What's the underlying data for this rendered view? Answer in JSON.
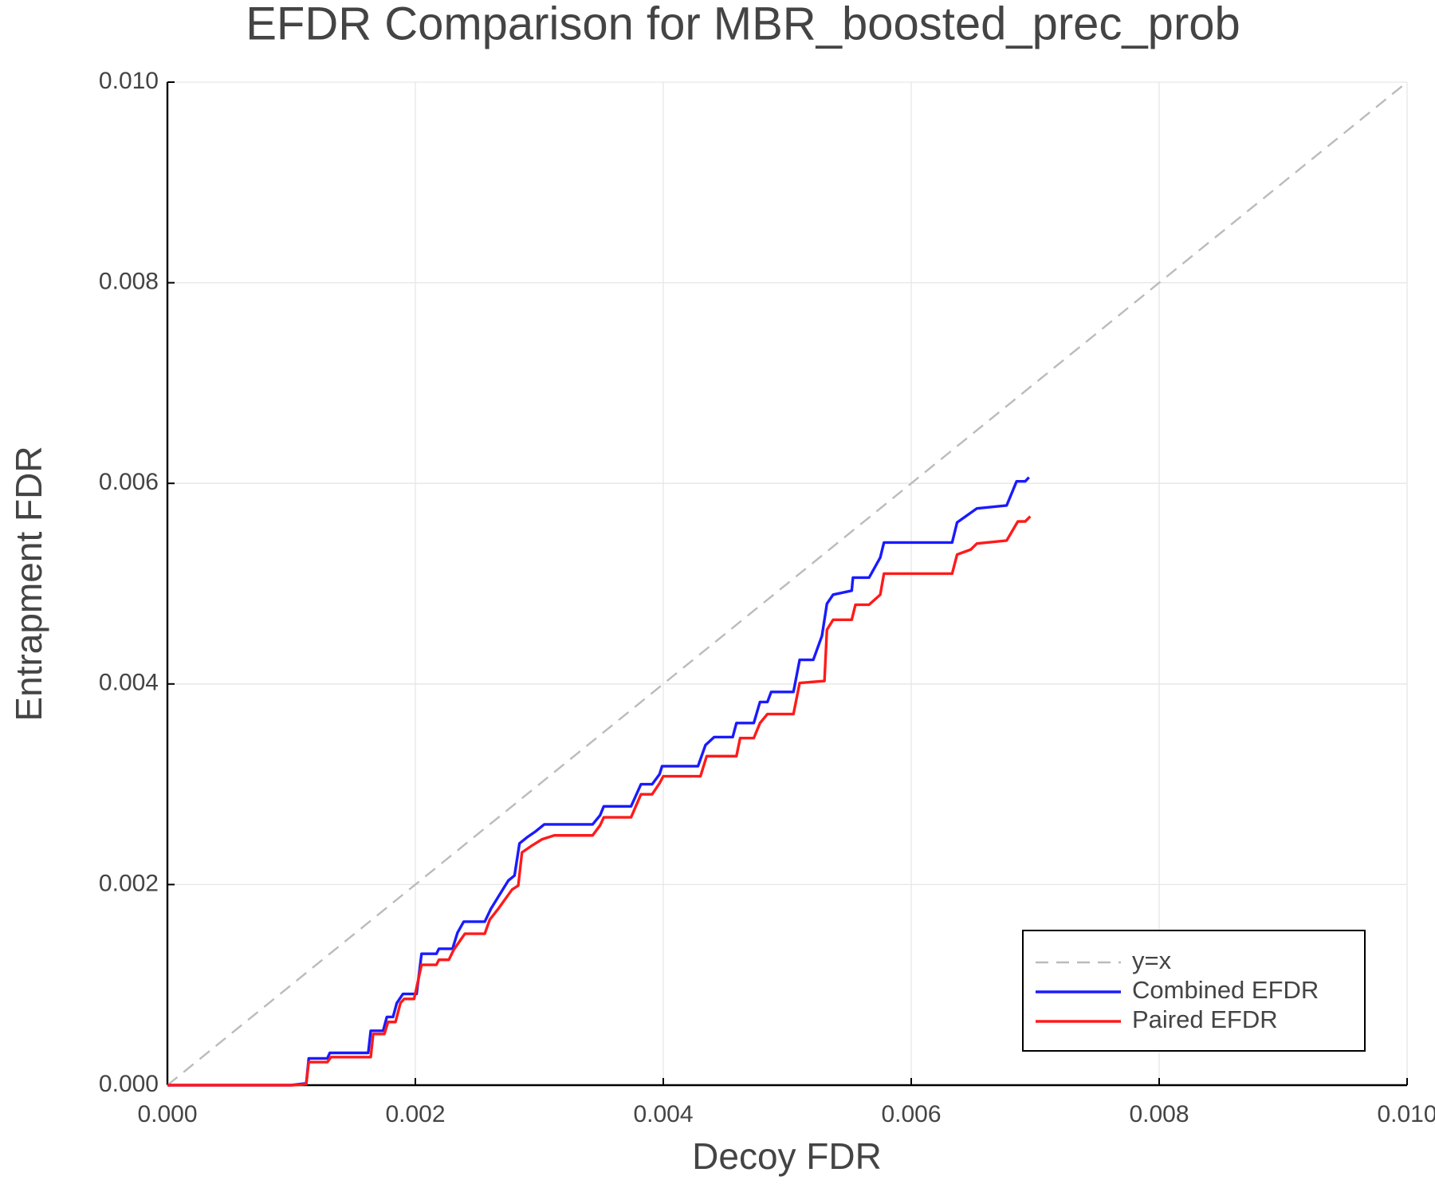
{
  "chart_data": {
    "type": "line",
    "title": "EFDR Comparison for MBR_boosted_prec_prob",
    "xlabel": "Decoy FDR",
    "ylabel": "Entrapment FDR",
    "xlim": [
      0,
      0.01
    ],
    "ylim": [
      0,
      0.01
    ],
    "xticks": [
      {
        "value": 0,
        "label": "0.000"
      },
      {
        "value": 0.002,
        "label": "0.002"
      },
      {
        "value": 0.004,
        "label": "0.004"
      },
      {
        "value": 0.006,
        "label": "0.006"
      },
      {
        "value": 0.008,
        "label": "0.008"
      },
      {
        "value": 0.01,
        "label": "0.010"
      }
    ],
    "yticks": [
      {
        "value": 0,
        "label": "0.000"
      },
      {
        "value": 0.002,
        "label": "0.002"
      },
      {
        "value": 0.004,
        "label": "0.004"
      },
      {
        "value": 0.006,
        "label": "0.006"
      },
      {
        "value": 0.008,
        "label": "0.008"
      },
      {
        "value": 0.01,
        "label": "0.010"
      }
    ],
    "grid": true,
    "legend": "lower right",
    "series": [
      {
        "name": "y=x",
        "color": "#bbbbbb",
        "dashed": true,
        "x": [
          0,
          0.01
        ],
        "values": [
          0,
          0.01
        ]
      },
      {
        "name": "Combined EFDR",
        "color": "#1a1aff",
        "x": [
          0,
          0.000997,
          0.00112,
          0.00114,
          0.00129,
          0.00131,
          0.00162,
          0.00164,
          0.00174,
          0.00177,
          0.00182,
          0.00185,
          0.0019,
          0.00201,
          0.00205,
          0.00217,
          0.00219,
          0.0023,
          0.00234,
          0.00239,
          0.00256,
          0.00261,
          0.00267,
          0.00275,
          0.0028,
          0.00284,
          0.0029,
          0.00297,
          0.00304,
          0.00343,
          0.00349,
          0.00352,
          0.00374,
          0.00382,
          0.00391,
          0.00397,
          0.00399,
          0.00428,
          0.00434,
          0.00441,
          0.00456,
          0.00459,
          0.00473,
          0.00478,
          0.00484,
          0.00487,
          0.00505,
          0.0051,
          0.00521,
          0.00528,
          0.00532,
          0.00537,
          0.00552,
          0.00553,
          0.00566,
          0.00575,
          0.00578,
          0.00633,
          0.00637,
          0.00653,
          0.00677,
          0.00685,
          0.00692,
          0.00695
        ],
        "values": [
          0,
          0,
          1.8e-05,
          0.000267,
          0.000267,
          0.000322,
          0.000322,
          0.000542,
          0.000542,
          0.00068,
          0.00068,
          0.000818,
          0.00091,
          0.00091,
          0.00131,
          0.00131,
          0.00136,
          0.00136,
          0.00152,
          0.00163,
          0.00163,
          0.00176,
          0.00188,
          0.00204,
          0.00209,
          0.00241,
          0.00247,
          0.00253,
          0.0026,
          0.0026,
          0.00269,
          0.00278,
          0.00278,
          0.003,
          0.003,
          0.0031,
          0.00318,
          0.00318,
          0.00339,
          0.00347,
          0.00347,
          0.00361,
          0.00361,
          0.00382,
          0.00382,
          0.00392,
          0.00392,
          0.00424,
          0.00424,
          0.00448,
          0.0048,
          0.00489,
          0.00493,
          0.00506,
          0.00506,
          0.00526,
          0.00541,
          0.00541,
          0.00561,
          0.00575,
          0.00578,
          0.00602,
          0.00602,
          0.00606
        ]
      },
      {
        "name": "Paired EFDR",
        "color": "#ff1a1a",
        "x": [
          0,
          0.00101,
          0.00112,
          0.00114,
          0.00129,
          0.00132,
          0.00164,
          0.00166,
          0.00175,
          0.00178,
          0.00184,
          0.00188,
          0.00191,
          0.00199,
          0.00205,
          0.00217,
          0.00219,
          0.00227,
          0.00231,
          0.00236,
          0.0024,
          0.00256,
          0.0026,
          0.00267,
          0.00278,
          0.00283,
          0.00286,
          0.00293,
          0.00302,
          0.00312,
          0.00343,
          0.00349,
          0.00352,
          0.00374,
          0.00382,
          0.00391,
          0.00397,
          0.004,
          0.0043,
          0.00435,
          0.00459,
          0.00462,
          0.00473,
          0.00478,
          0.00484,
          0.00505,
          0.0051,
          0.0053,
          0.00532,
          0.00537,
          0.00552,
          0.00555,
          0.00566,
          0.00575,
          0.00578,
          0.00633,
          0.00637,
          0.00648,
          0.00653,
          0.00677,
          0.00686,
          0.00692,
          0.00696
        ],
        "values": [
          0,
          0,
          1e-05,
          0.00023,
          0.00023,
          0.00028,
          0.00028,
          0.00051,
          0.00051,
          0.00063,
          0.00063,
          0.00082,
          0.00086,
          0.00086,
          0.0012,
          0.0012,
          0.00125,
          0.00125,
          0.00135,
          0.00144,
          0.00151,
          0.00151,
          0.00165,
          0.00176,
          0.00195,
          0.00199,
          0.00232,
          0.00238,
          0.00245,
          0.00249,
          0.00249,
          0.00259,
          0.00267,
          0.00267,
          0.0029,
          0.0029,
          0.00301,
          0.00308,
          0.00308,
          0.00328,
          0.00328,
          0.00346,
          0.00346,
          0.00361,
          0.0037,
          0.0037,
          0.00401,
          0.00403,
          0.00454,
          0.00464,
          0.00464,
          0.00479,
          0.00479,
          0.00489,
          0.0051,
          0.0051,
          0.00529,
          0.00534,
          0.0054,
          0.00543,
          0.00562,
          0.00562,
          0.00567
        ]
      }
    ]
  }
}
